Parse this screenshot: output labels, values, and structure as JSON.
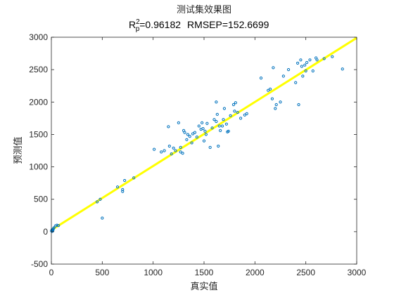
{
  "chart_data": {
    "type": "scatter",
    "title": "测试集效果图",
    "subtitle": {
      "r2_symbol": "R",
      "r2_sup": "2",
      "r2_sub": "p",
      "r2_value": "=0.96182",
      "rmsep": "RMSEP=152.6699"
    },
    "xlabel": "真实值",
    "ylabel": "预测值",
    "xlim": [
      0,
      3000
    ],
    "ylim": [
      -500,
      3000
    ],
    "xticks": [
      0,
      500,
      1000,
      1500,
      2000,
      2500,
      3000
    ],
    "yticks": [
      -500,
      0,
      500,
      1000,
      1500,
      2000,
      2500,
      3000
    ],
    "grid": false,
    "colors": {
      "points": "#0072BD",
      "fit_line": "#FFFF00",
      "axes": "#262626"
    },
    "fit_line": {
      "x": [
        0,
        3000
      ],
      "y": [
        25,
        2990
      ]
    },
    "points": [
      [
        2,
        10
      ],
      [
        5,
        25
      ],
      [
        8,
        5
      ],
      [
        12,
        35
      ],
      [
        15,
        20
      ],
      [
        20,
        45
      ],
      [
        25,
        60
      ],
      [
        40,
        90
      ],
      [
        55,
        100
      ],
      [
        70,
        95
      ],
      [
        450,
        460
      ],
      [
        480,
        500
      ],
      [
        500,
        210
      ],
      [
        650,
        690
      ],
      [
        700,
        620
      ],
      [
        700,
        650
      ],
      [
        720,
        790
      ],
      [
        810,
        830
      ],
      [
        1010,
        1270
      ],
      [
        1080,
        1230
      ],
      [
        1110,
        1250
      ],
      [
        1150,
        1620
      ],
      [
        1160,
        1320
      ],
      [
        1180,
        1200
      ],
      [
        1200,
        1290
      ],
      [
        1220,
        1250
      ],
      [
        1250,
        1680
      ],
      [
        1270,
        1230
      ],
      [
        1270,
        1300
      ],
      [
        1290,
        1210
      ],
      [
        1300,
        1560
      ],
      [
        1310,
        1530
      ],
      [
        1330,
        1420
      ],
      [
        1340,
        1500
      ],
      [
        1360,
        1470
      ],
      [
        1380,
        1370
      ],
      [
        1390,
        1510
      ],
      [
        1410,
        1530
      ],
      [
        1430,
        1460
      ],
      [
        1450,
        1630
      ],
      [
        1470,
        1580
      ],
      [
        1480,
        1680
      ],
      [
        1490,
        1590
      ],
      [
        1500,
        1400
      ],
      [
        1510,
        1550
      ],
      [
        1520,
        1500
      ],
      [
        1530,
        1670
      ],
      [
        1560,
        1300
      ],
      [
        1580,
        1600
      ],
      [
        1600,
        1730
      ],
      [
        1620,
        2000
      ],
      [
        1620,
        1700
      ],
      [
        1630,
        1810
      ],
      [
        1640,
        1320
      ],
      [
        1650,
        1630
      ],
      [
        1660,
        1560
      ],
      [
        1680,
        1630
      ],
      [
        1690,
        1730
      ],
      [
        1700,
        1900
      ],
      [
        1720,
        1660
      ],
      [
        1730,
        1540
      ],
      [
        1740,
        1550
      ],
      [
        1760,
        1790
      ],
      [
        1790,
        1960
      ],
      [
        1800,
        1860
      ],
      [
        1810,
        1990
      ],
      [
        1830,
        1840
      ],
      [
        1860,
        1750
      ],
      [
        1900,
        1800
      ],
      [
        1920,
        1820
      ],
      [
        2060,
        2370
      ],
      [
        2130,
        2180
      ],
      [
        2150,
        2200
      ],
      [
        2170,
        2050
      ],
      [
        2180,
        2530
      ],
      [
        2200,
        1900
      ],
      [
        2210,
        1960
      ],
      [
        2250,
        2000
      ],
      [
        2280,
        2400
      ],
      [
        2330,
        2500
      ],
      [
        2400,
        2300
      ],
      [
        2420,
        2600
      ],
      [
        2430,
        1960
      ],
      [
        2450,
        2650
      ],
      [
        2460,
        2550
      ],
      [
        2470,
        2400
      ],
      [
        2490,
        2570
      ],
      [
        2500,
        2480
      ],
      [
        2510,
        2610
      ],
      [
        2540,
        2650
      ],
      [
        2570,
        2480
      ],
      [
        2600,
        2680
      ],
      [
        2610,
        2650
      ],
      [
        2680,
        2670
      ],
      [
        2760,
        2700
      ],
      [
        2860,
        2510
      ]
    ]
  }
}
